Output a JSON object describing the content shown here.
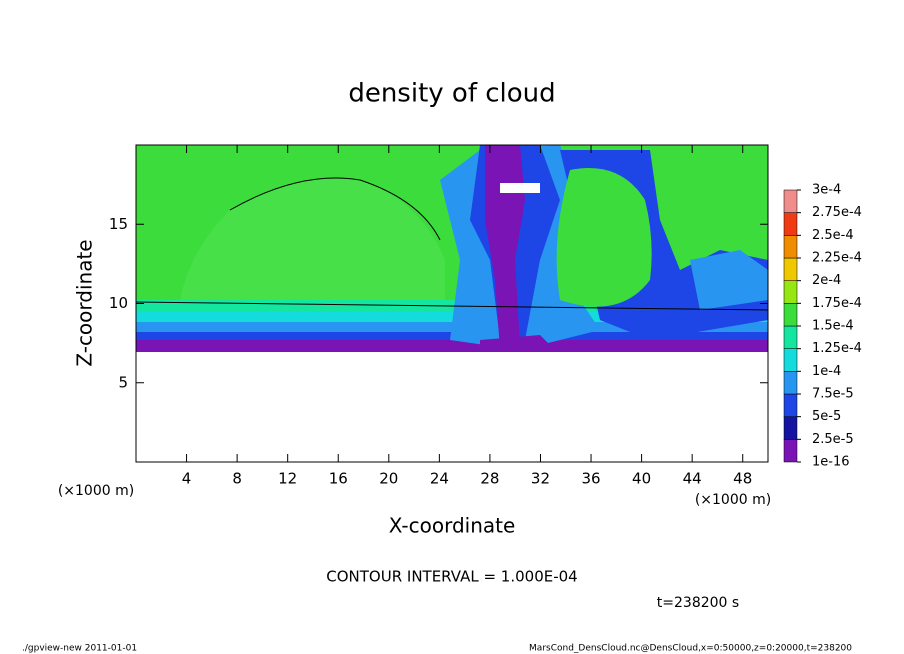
{
  "chart_data": {
    "type": "contour",
    "title": "density of cloud",
    "xlabel": "X-coordinate",
    "ylabel": "Z-coordinate",
    "x_unit": "(×1000 m)",
    "xlim": [
      0,
      50
    ],
    "ylim": [
      0,
      20
    ],
    "xticks": [
      4,
      8,
      12,
      16,
      20,
      24,
      28,
      32,
      36,
      40,
      44,
      48
    ],
    "yticks": [
      5,
      10,
      15
    ],
    "colorbar": {
      "levels": [
        {
          "value": 1e-16,
          "label": "1e-16"
        },
        {
          "value": 2.5e-05,
          "label": "2.5e-5"
        },
        {
          "value": 5e-05,
          "label": "5e-5"
        },
        {
          "value": 7.5e-05,
          "label": "7.5e-5"
        },
        {
          "value": 0.0001,
          "label": "1e-4"
        },
        {
          "value": 0.000125,
          "label": "1.25e-4"
        },
        {
          "value": 0.00015,
          "label": "1.5e-4"
        },
        {
          "value": 0.000175,
          "label": "1.75e-4"
        },
        {
          "value": 0.0002,
          "label": "2e-4"
        },
        {
          "value": 0.000225,
          "label": "2.25e-4"
        },
        {
          "value": 0.00025,
          "label": "2.5e-4"
        },
        {
          "value": 0.000275,
          "label": "2.75e-4"
        },
        {
          "value": 0.0003,
          "label": "3e-4"
        }
      ],
      "colors": [
        "#7a14b4",
        "#1414a0",
        "#1e46e6",
        "#2896f0",
        "#14dcdc",
        "#14e6a0",
        "#3cdc3c",
        "#96e614",
        "#f0c800",
        "#f08c00",
        "#f03c14",
        "#f08c8c"
      ]
    },
    "contour_interval": "CONTOUR INTERVAL = 1.000E-04",
    "time_label": "t=238200 s",
    "footer_left": "./gpview-new   2011-01-01",
    "footer_right": "MarsCond_DensCloud.nc@DensCloud,x=0:50000,z=0:20000,t=238200"
  }
}
